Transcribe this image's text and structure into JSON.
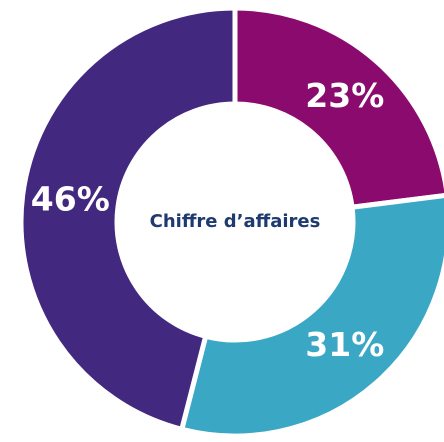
{
  "chart_data": {
    "type": "donut",
    "center_label": "Chiffre d’affaires",
    "values": [
      23,
      31,
      46
    ],
    "value_labels": [
      "23%",
      "31%",
      "46%"
    ],
    "colors": [
      "#8b0a6e",
      "#3aa7c4",
      "#43287f"
    ]
  }
}
